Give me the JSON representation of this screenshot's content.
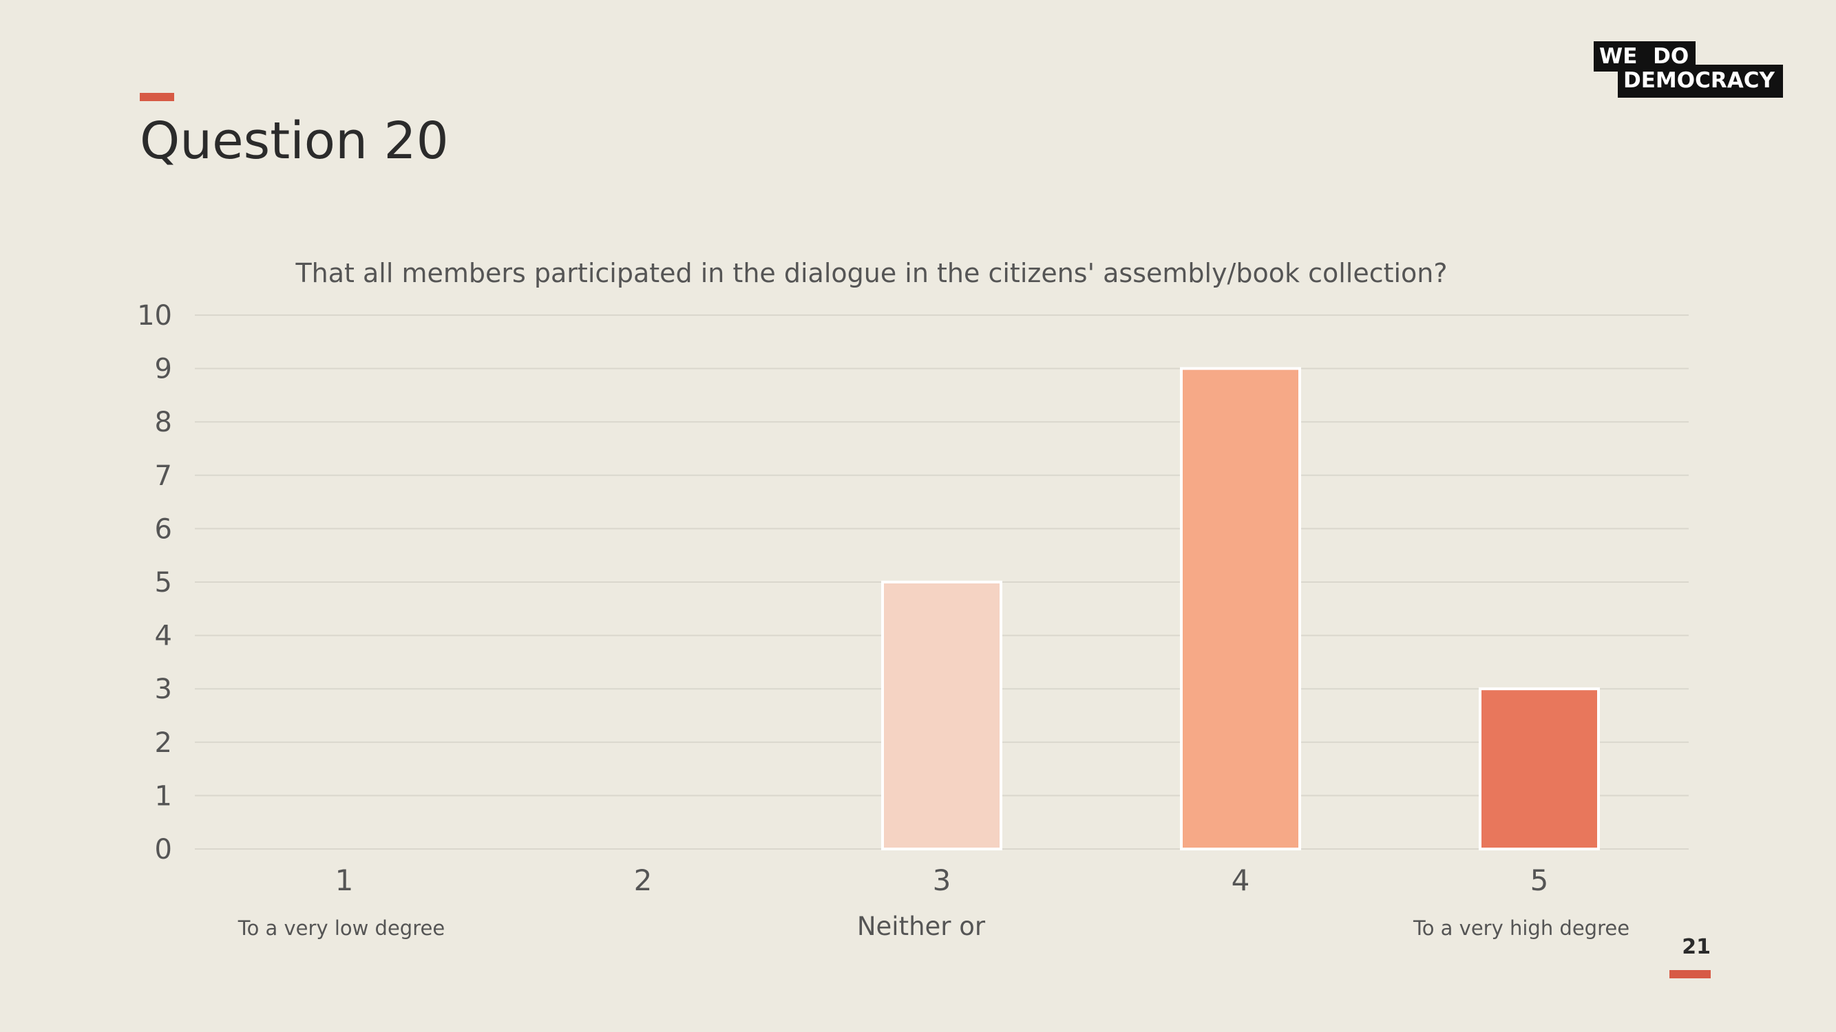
{
  "slide": {
    "title": "Question 20",
    "page_number": "21",
    "logo": {
      "line1": "WE DO",
      "line2": "DEMOCRACY"
    },
    "scale_labels": {
      "low": "To a very low degree",
      "mid": "Neither or",
      "high": "To a very high degree"
    },
    "colors": {
      "background": "#edeae0",
      "accent": "#d75a45"
    }
  },
  "chart_data": {
    "type": "bar",
    "title": "That all members participated in the dialogue in the citizens' assembly/book collection?",
    "categories": [
      "1",
      "2",
      "3",
      "4",
      "5"
    ],
    "values": [
      0,
      0,
      5,
      9,
      3
    ],
    "colors": [
      "#f5d3c3",
      "#f5d3c3",
      "#f5d3c3",
      "#f6a987",
      "#e8775c"
    ],
    "ylim": [
      0,
      10
    ],
    "yticks": [
      0,
      1,
      2,
      3,
      4,
      5,
      6,
      7,
      8,
      9,
      10
    ],
    "grid": true,
    "legend": "none",
    "xlabel": "",
    "ylabel": ""
  }
}
